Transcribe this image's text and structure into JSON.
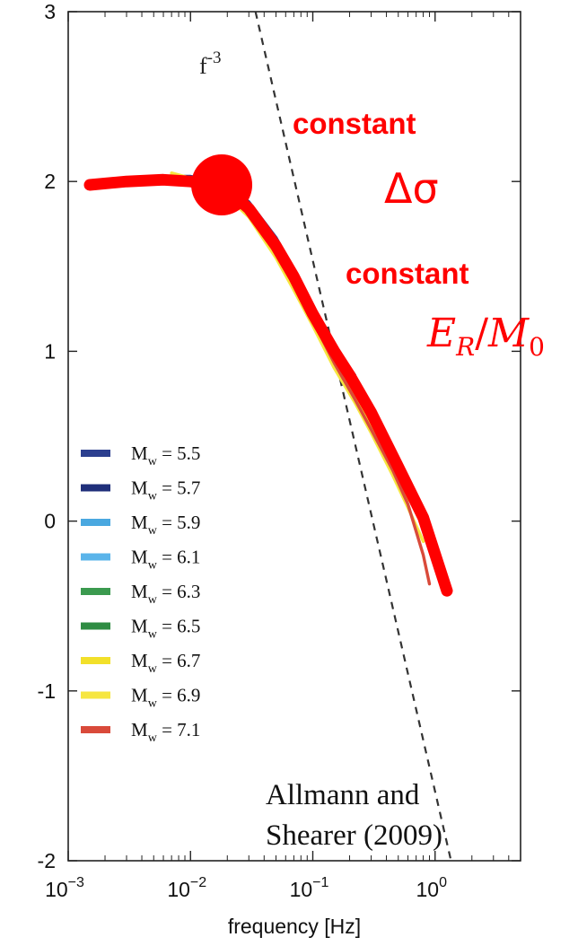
{
  "chart_data": {
    "type": "line",
    "title": "",
    "xlabel": "frequency [Hz]",
    "ylabel": "",
    "x_scale": "log",
    "xlim": [
      0.001,
      5
    ],
    "ylim": [
      -2,
      3
    ],
    "x_ticks": [
      {
        "value": 0.001,
        "label": "10^-3",
        "base": "10",
        "exp": "−3"
      },
      {
        "value": 0.01,
        "label": "10^-2",
        "base": "10",
        "exp": "−2"
      },
      {
        "value": 0.1,
        "label": "10^-1",
        "base": "10",
        "exp": "−1"
      },
      {
        "value": 1,
        "label": "10^0",
        "base": "10",
        "exp": "0"
      }
    ],
    "y_ticks": [
      {
        "value": 3,
        "label": "3"
      },
      {
        "value": 2,
        "label": "2"
      },
      {
        "value": 1,
        "label": "1"
      },
      {
        "value": 0,
        "label": "0"
      },
      {
        "value": -1,
        "label": "-1"
      },
      {
        "value": -2,
        "label": "-2"
      }
    ],
    "reference_line": {
      "label_base": "f",
      "label_exp": "-3",
      "x": [
        0.034,
        1.35
      ],
      "y": [
        3.0,
        -2.0
      ],
      "color": "#333333"
    },
    "series": [
      {
        "name": "M = 5.5",
        "sym": "M",
        "sub": "w",
        "rest": " = 5.5",
        "color": "#2c3f8f",
        "x": [
          0.007,
          0.01,
          0.015,
          0.02,
          0.03,
          0.05,
          0.07,
          0.1,
          0.15,
          0.22
        ],
        "y": [
          2.03,
          2.03,
          2.01,
          1.97,
          1.88,
          1.67,
          1.48,
          1.27,
          1.03,
          0.86
        ]
      },
      {
        "name": "M = 5.7",
        "sym": "M",
        "sub": "w",
        "rest": " = 5.7",
        "color": "#1f2f7a",
        "x": [
          0.007,
          0.01,
          0.015,
          0.02,
          0.03,
          0.05,
          0.07,
          0.1,
          0.15,
          0.22
        ],
        "y": [
          2.02,
          2.02,
          2.0,
          1.96,
          1.86,
          1.65,
          1.46,
          1.25,
          1.01,
          0.85
        ]
      },
      {
        "name": "M = 5.9",
        "sym": "M",
        "sub": "w",
        "rest": " = 5.9",
        "color": "#4aa8e0",
        "x": [
          0.007,
          0.01,
          0.015,
          0.02,
          0.03,
          0.05,
          0.07,
          0.1,
          0.15,
          0.22
        ],
        "y": [
          2.03,
          2.02,
          2.0,
          1.96,
          1.86,
          1.64,
          1.45,
          1.24,
          1.0,
          0.83
        ]
      },
      {
        "name": "M = 6.1",
        "sym": "M",
        "sub": "w",
        "rest": " = 6.1",
        "color": "#5ab4ea",
        "x": [
          0.007,
          0.01,
          0.015,
          0.02,
          0.03,
          0.05,
          0.07,
          0.1,
          0.15,
          0.22,
          0.3
        ],
        "y": [
          2.02,
          2.02,
          1.99,
          1.95,
          1.84,
          1.62,
          1.43,
          1.22,
          0.98,
          0.79,
          0.62
        ]
      },
      {
        "name": "M = 6.3",
        "sym": "M",
        "sub": "w",
        "rest": " = 6.3",
        "color": "#3b9a4f",
        "x": [
          0.007,
          0.01,
          0.015,
          0.02,
          0.03,
          0.05,
          0.07,
          0.1,
          0.15,
          0.22,
          0.3
        ],
        "y": [
          2.03,
          2.02,
          1.99,
          1.94,
          1.83,
          1.61,
          1.42,
          1.2,
          0.96,
          0.77,
          0.6
        ]
      },
      {
        "name": "M = 6.5",
        "sym": "M",
        "sub": "w",
        "rest": " = 6.5",
        "color": "#2f8c43",
        "x": [
          0.007,
          0.01,
          0.015,
          0.02,
          0.03,
          0.05,
          0.07,
          0.1,
          0.15,
          0.22,
          0.3,
          0.45
        ],
        "y": [
          2.02,
          2.01,
          1.98,
          1.93,
          1.82,
          1.6,
          1.41,
          1.19,
          0.95,
          0.76,
          0.58,
          0.35
        ]
      },
      {
        "name": "M = 6.7",
        "sym": "M",
        "sub": "w",
        "rest": " = 6.7",
        "color": "#f2e02a",
        "x": [
          0.007,
          0.01,
          0.015,
          0.02,
          0.03,
          0.05,
          0.07,
          0.1,
          0.15,
          0.22,
          0.3,
          0.45,
          0.6
        ],
        "y": [
          2.04,
          2.02,
          1.98,
          1.92,
          1.8,
          1.57,
          1.38,
          1.17,
          0.93,
          0.73,
          0.55,
          0.3,
          0.12
        ]
      },
      {
        "name": "M = 6.9",
        "sym": "M",
        "sub": "w",
        "rest": " = 6.9",
        "color": "#f6e640",
        "x": [
          0.007,
          0.01,
          0.015,
          0.02,
          0.03,
          0.05,
          0.07,
          0.1,
          0.15,
          0.22,
          0.3,
          0.45,
          0.6,
          0.8
        ],
        "y": [
          2.05,
          2.02,
          1.97,
          1.91,
          1.79,
          1.55,
          1.36,
          1.15,
          0.9,
          0.7,
          0.52,
          0.27,
          0.08,
          -0.12
        ]
      },
      {
        "name": "M = 7.1",
        "sym": "M",
        "sub": "w",
        "rest": " = 7.1",
        "color": "#d94a3a",
        "x": [
          0.012,
          0.015,
          0.02,
          0.03,
          0.05,
          0.07,
          0.1,
          0.15,
          0.22,
          0.3,
          0.45,
          0.6,
          0.8,
          0.9
        ],
        "y": [
          2.02,
          2.0,
          1.96,
          1.84,
          1.6,
          1.4,
          1.18,
          0.93,
          0.72,
          0.54,
          0.3,
          0.1,
          -0.2,
          -0.37
        ]
      }
    ],
    "highlight_curve": {
      "color": "#ff0000",
      "x": [
        0.0015,
        0.003,
        0.006,
        0.01,
        0.015,
        0.02,
        0.03,
        0.05,
        0.07,
        0.1,
        0.15,
        0.2,
        0.3,
        0.5,
        0.8,
        1.25
      ],
      "y": [
        1.98,
        2.0,
        2.01,
        2.0,
        1.98,
        1.95,
        1.84,
        1.62,
        1.44,
        1.22,
        1.0,
        0.86,
        0.64,
        0.32,
        0.02,
        -0.41
      ]
    },
    "corner_point": {
      "x": 0.018,
      "y": 1.98,
      "color": "#ff0000"
    }
  },
  "annotations": {
    "constant_1": "constant",
    "stress_drop": "Δσ",
    "constant_2": "constant",
    "energy_ratio_E": "E",
    "energy_ratio_sub": "R",
    "energy_ratio_slash": "/",
    "energy_ratio_M": "M",
    "energy_ratio_sub2": "0"
  },
  "citation": {
    "line1": "Allmann and",
    "line2": "Shearer (2009)"
  }
}
